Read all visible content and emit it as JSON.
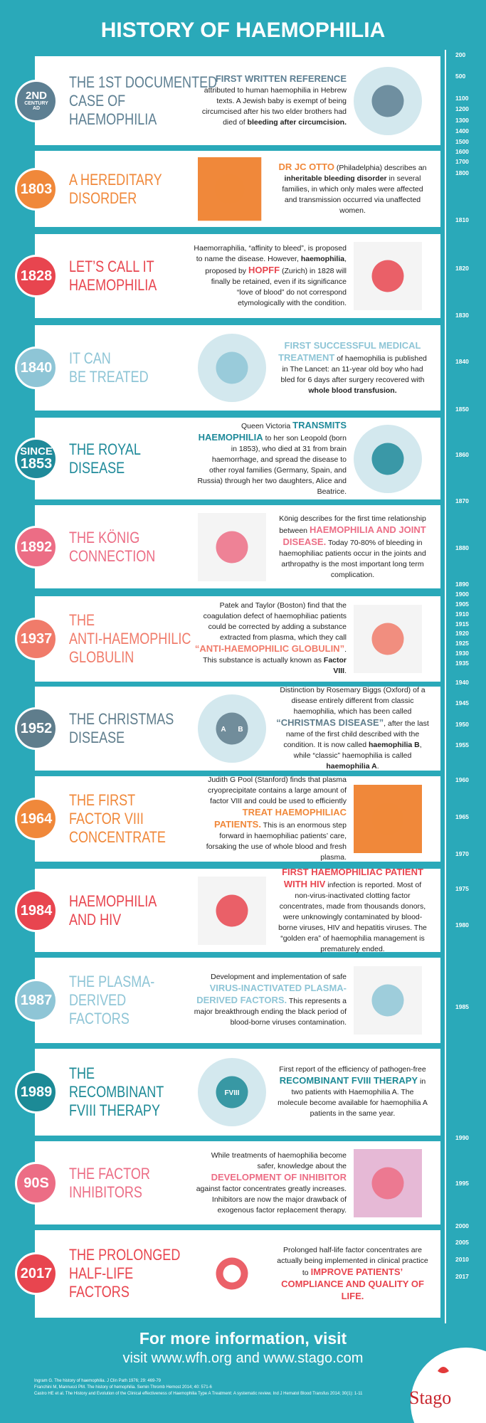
{
  "header": {
    "title": "HISTORY OF HAEMOPHILIA"
  },
  "cards": [
    {
      "year": [
        "2ND",
        "CENTURY",
        "AD"
      ],
      "color": "#5d7f92",
      "heading": [
        "THE 1ST DOCUMENTED",
        "CASE OF",
        "HAEMOPHILIA"
      ],
      "body": [
        {
          "text": "FIRST WRITTEN REFERENCE",
          "style": "highlight"
        },
        {
          "text": " attributed to human haemophilia in Hebrew texts. A Jewish baby is exempt of being circumcised after his two elder brothers had died of "
        },
        {
          "text": "bleeding after circumcision.",
          "style": "bold"
        }
      ]
    },
    {
      "year": [
        "1803"
      ],
      "color": "#f0883a",
      "heading": [
        "A HEREDITARY",
        "DISORDER"
      ],
      "body": [
        {
          "text": "DR JC OTTO",
          "style": "highlight"
        },
        {
          "text": " (Philadelphia) describes an "
        },
        {
          "text": "inheritable bleeding disorder",
          "style": "bold"
        },
        {
          "text": " in several families, in which only males were affected and transmission occurred via unaffected women."
        }
      ]
    },
    {
      "year": [
        "1828"
      ],
      "color": "#e8454f",
      "heading": [
        "LET’S CALL IT",
        "HAEMOPHILIA"
      ],
      "body": [
        {
          "text": "Haemorraphilia, “affinity to bleed”, is proposed to name the disease. However, "
        },
        {
          "text": "haemophilia",
          "style": "bold"
        },
        {
          "text": ", proposed by "
        },
        {
          "text": "HOPFF",
          "style": "highlight"
        },
        {
          "text": " (Zurich) in 1828 will finally be retained, even if its significance “love of blood” do not correspond etymologically with the condition."
        }
      ]
    },
    {
      "year": [
        "1840"
      ],
      "color": "#8ec5d6",
      "heading": [
        "IT CAN",
        "BE TREATED"
      ],
      "body": [
        {
          "text": "FIRST SUCCESSFUL MEDICAL TREATMENT",
          "style": "highlight"
        },
        {
          "text": " of haemophilia is published in The Lancet: an 11-year old boy who had bled for 6 days after surgery recovered with "
        },
        {
          "text": "whole blood transfusion.",
          "style": "bold"
        }
      ]
    },
    {
      "year": [
        "SINCE",
        "1853"
      ],
      "color": "#1f8a9a",
      "heading": [
        "THE ROYAL",
        "DISEASE"
      ],
      "body": [
        {
          "text": "Queen Victoria "
        },
        {
          "text": "TRANSMITS HAEMOPHILIA",
          "style": "highlight"
        },
        {
          "text": " to her son Leopold (born in 1853), who died at 31 from brain haemorrhage, and spread the disease to other royal families (Germany, Spain, and Russia) through her two daughters, Alice and Beatrice."
        }
      ]
    },
    {
      "year": [
        "1892"
      ],
      "color": "#ec6d85",
      "heading": [
        "THE KÖNIG",
        "CONNECTION"
      ],
      "body": [
        {
          "text": "König describes for the first time relationship between "
        },
        {
          "text": "HAEMOPHILIA AND JOINT DISEASE.",
          "style": "highlight"
        },
        {
          "text": " Today 70-80% of bleeding in haemophiliac patients occur in the joints and arthropathy is the most important long term complication."
        }
      ]
    },
    {
      "year": [
        "1937"
      ],
      "color": "#f07b6a",
      "heading": [
        "THE",
        "ANTI-HAEMOPHILIC",
        "GLOBULIN"
      ],
      "body": [
        {
          "text": "Patek and Taylor (Boston) find that the coagulation defect of haemophiliac patients could be corrected by adding a substance extracted from plasma, which they call "
        },
        {
          "text": "“ANTI-HAEMOPHILIC GLOBULIN”",
          "style": "highlight"
        },
        {
          "text": ". This substance is actually known as "
        },
        {
          "text": "Factor VIII",
          "style": "bold"
        },
        {
          "text": "."
        }
      ]
    },
    {
      "year": [
        "1952"
      ],
      "color": "#5f7d8c",
      "heading": [
        "THE CHRISTMAS",
        "DISEASE"
      ],
      "icon_text": [
        "A",
        "B"
      ],
      "body": [
        {
          "text": "Distinction by Rosemary Biggs (Oxford) of a disease entirely different from classic haemophilia, which has been called "
        },
        {
          "text": "“CHRISTMAS DISEASE”",
          "style": "highlight"
        },
        {
          "text": ", after the last name of the first child described with the condition. It is now called "
        },
        {
          "text": "haemophilia B",
          "style": "bold"
        },
        {
          "text": ", while “classic” haemophilia is called "
        },
        {
          "text": "haemophilia A",
          "style": "bold"
        },
        {
          "text": "."
        }
      ]
    },
    {
      "year": [
        "1964"
      ],
      "color": "#f0883a",
      "heading": [
        "THE FIRST",
        "FACTOR VIII",
        "CONCENTRATE"
      ],
      "body": [
        {
          "text": "Judith G Pool (Stanford) finds that plasma cryoprecipitate contains a large amount of factor VIII and could be used to efficiently "
        },
        {
          "text": "TREAT HAEMOPHILIAC PATIENTS.",
          "style": "highlight"
        },
        {
          "text": " This is an enormous step forward in haemophiliac patients’ care, forsaking the use of whole blood and fresh plasma."
        }
      ]
    },
    {
      "year": [
        "1984"
      ],
      "color": "#e8454f",
      "heading": [
        "HAEMOPHILIA",
        "AND HIV"
      ],
      "body": [
        {
          "text": "FIRST HAEMOPHILIAC PATIENT WITH HIV",
          "style": "highlight"
        },
        {
          "text": " infection is reported. Most of non-virus-inactivated clotting factor concentrates, made from thousands donors, were unknowingly contaminated by blood-borne viruses, HIV and hepatitis viruses. The “golden era” of haemophilia management is prematurely ended."
        }
      ]
    },
    {
      "year": [
        "1987"
      ],
      "color": "#8ec5d6",
      "heading": [
        "THE PLASMA-",
        "DERIVED",
        "FACTORS"
      ],
      "body": [
        {
          "text": "Development and implementation of safe "
        },
        {
          "text": "VIRUS-INACTIVATED PLASMA-DERIVED FACTORS.",
          "style": "highlight"
        },
        {
          "text": " This represents a major breakthrough ending the black period of blood-borne viruses contamination."
        }
      ]
    },
    {
      "year": [
        "1989"
      ],
      "color": "#1c8a96",
      "heading": [
        "THE",
        "RECOMBINANT",
        "FVIII THERAPY"
      ],
      "icon_text": [
        "FVIII"
      ],
      "body": [
        {
          "text": "First report of the efficiency of pathogen-free "
        },
        {
          "text": "RECOMBINANT FVIII THERAPY",
          "style": "highlight"
        },
        {
          "text": " in two patients with Haemophilia A. The molecule become available for haemophilia A patients in the same year."
        }
      ]
    },
    {
      "year": [
        "90S"
      ],
      "color": "#ec6d85",
      "heading": [
        "THE FACTOR",
        "INHIBITORS"
      ],
      "body": [
        {
          "text": "While treatments of haemophilia become safer, knowledge about the "
        },
        {
          "text": "DEVELOPMENT OF INHIBITOR",
          "style": "highlight"
        },
        {
          "text": " against factor concentrates greatly increases. Inhibitors are now the major drawback of exogenous factor replacement therapy."
        }
      ]
    },
    {
      "year": [
        "2017"
      ],
      "color": "#e8454f",
      "heading": [
        "THE PROLONGED",
        "HALF-LIFE",
        "FACTORS"
      ],
      "body": [
        {
          "text": "Prolonged half-life factor concentrates are actually being implemented in clinical practice to "
        },
        {
          "text": "IMPROVE PATIENTS’ COMPLIANCE AND QUALITY OF LIFE.",
          "style": "highlight"
        }
      ]
    }
  ],
  "timeline": [
    "200",
    "500",
    "1100",
    "1200",
    "1300",
    "1400",
    "1500",
    "1600",
    "1700",
    "1800",
    "1810",
    "1820",
    "1830",
    "1840",
    "1850",
    "1860",
    "1870",
    "1880",
    "1890",
    "1900",
    "1905",
    "1910",
    "1915",
    "1920",
    "1925",
    "1930",
    "1935",
    "1940",
    "1945",
    "1950",
    "1955",
    "1960",
    "1965",
    "1970",
    "1975",
    "1980",
    "1985",
    "1990",
    "1995",
    "2000",
    "2005",
    "2010",
    "2017"
  ],
  "footer": {
    "line1": "For more information, visit",
    "line2": "visit www.wfh.org and www.stago.com",
    "references": [
      "Ingram G. The history of haemophilia. J Clin Path 1976; 29: 469-79",
      "Franchini M, Mannucci PM. The history of hemophilia. Semin Thromb Hemost 2014; 40: 571-6",
      "Castro HE et al. The History and Evolution of the Clinical effectiveness of Haemophilia Type A Treatment: A systematic review. Ind J Hematol Blood Transfus 2014; 30(1): 1-11"
    ],
    "logo": "Stago"
  }
}
